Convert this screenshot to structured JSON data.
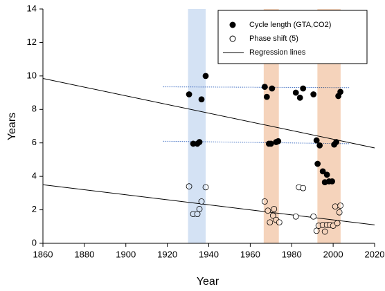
{
  "chart_data": {
    "type": "scatter",
    "xlabel": "Year",
    "ylabel": "Years",
    "xlim": [
      1860,
      2020
    ],
    "ylim": [
      0,
      14
    ],
    "xticks": [
      1860,
      1880,
      1900,
      1920,
      1940,
      1960,
      1980,
      2000,
      2020
    ],
    "yticks": [
      0,
      2,
      4,
      6,
      8,
      10,
      12,
      14
    ],
    "bands": [
      {
        "x": [
          1930,
          1938.5
        ],
        "color": "#c6d9f0"
      },
      {
        "x": [
          1966.5,
          1973.8
        ],
        "color": "#f2c4a4"
      },
      {
        "x": [
          1992.4,
          2003.6
        ],
        "color": "#f2c4a4"
      }
    ],
    "series": [
      {
        "name": "Cycle length (GTA,CO2)",
        "marker": "filled",
        "color": "#000000",
        "x": [
          1930.5,
          1932.5,
          1934.5,
          1935.5,
          1936.5,
          1938.5,
          1967,
          1968,
          1969,
          1970,
          1970.5,
          1972.5,
          1973.5,
          1982,
          1984,
          1985.5,
          1990.5,
          1992,
          1993.5,
          1992.5,
          1995,
          1997,
          1996,
          1998,
          1999.5,
          2000.5,
          2001.5,
          2002.5,
          2003.5
        ],
        "y": [
          8.9,
          5.95,
          5.95,
          6.05,
          8.6,
          10.0,
          9.35,
          8.75,
          5.95,
          5.95,
          9.25,
          6.05,
          6.1,
          9.0,
          8.7,
          9.25,
          8.9,
          6.15,
          5.85,
          4.75,
          4.3,
          4.1,
          3.65,
          3.7,
          3.7,
          5.9,
          6.05,
          8.8,
          9.05
        ]
      },
      {
        "name": "Phase shift (5)",
        "marker": "open",
        "color": "#000000",
        "x": [
          1930.5,
          1932.5,
          1934.5,
          1935.5,
          1936.5,
          1938.5,
          1967,
          1968.5,
          1969.5,
          1971,
          1971.5,
          1972.5,
          1974,
          1982,
          1983.5,
          1985.5,
          1990.5,
          1992,
          1993,
          1995,
          1996,
          1997,
          1998.5,
          2000,
          2001,
          2002,
          2003,
          2003.5
        ],
        "y": [
          3.4,
          1.75,
          1.75,
          2.05,
          2.5,
          3.35,
          2.5,
          1.95,
          1.25,
          1.65,
          2.05,
          1.4,
          1.25,
          1.6,
          3.35,
          3.3,
          1.6,
          0.75,
          1.05,
          1.1,
          0.7,
          1.1,
          1.1,
          1.05,
          2.2,
          1.2,
          1.85,
          2.25
        ]
      }
    ],
    "regression": {
      "name": "Regression lines",
      "color": "#000000",
      "lines": [
        {
          "x": [
            1860,
            2020
          ],
          "y": [
            9.85,
            5.7
          ]
        },
        {
          "x": [
            1860,
            2020
          ],
          "y": [
            3.5,
            1.1
          ]
        }
      ]
    },
    "reference_lines": {
      "color": "#4472c4",
      "lines": [
        {
          "x": [
            1918,
            2008
          ],
          "y": [
            9.35,
            9.3
          ]
        },
        {
          "x": [
            1918,
            2008
          ],
          "y": [
            6.1,
            5.95
          ]
        }
      ]
    }
  }
}
